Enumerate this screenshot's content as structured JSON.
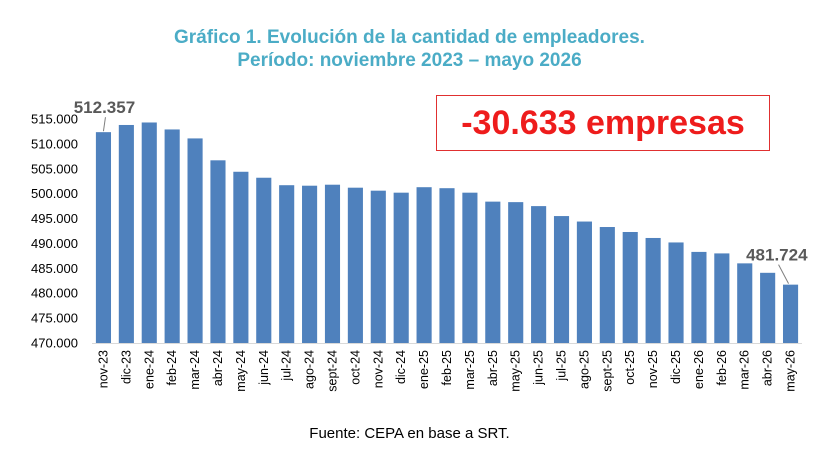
{
  "chart_data": {
    "type": "bar",
    "title": "Gráfico 1. Evolución de la cantidad de empleadores.",
    "subtitle": "Período: noviembre 2023 – mayo 2026",
    "categories": [
      "nov-23",
      "dic-23",
      "ene-24",
      "feb-24",
      "mar-24",
      "abr-24",
      "may-24",
      "jun-24",
      "jul-24",
      "ago-24",
      "sept-24",
      "oct-24",
      "nov-24",
      "dic-24",
      "ene-25",
      "feb-25",
      "mar-25",
      "abr-25",
      "may-25",
      "jun-25",
      "jul-25",
      "ago-25",
      "sept-25",
      "oct-25",
      "nov-25",
      "dic-25",
      "ene-26",
      "feb-26",
      "mar-26",
      "abr-26",
      "may-26"
    ],
    "values": [
      512357,
      513800,
      514300,
      512900,
      511100,
      506700,
      504400,
      503200,
      501700,
      501600,
      501800,
      501200,
      500600,
      500200,
      501300,
      501100,
      500200,
      498400,
      498300,
      497500,
      495500,
      494400,
      493300,
      492300,
      491100,
      490200,
      488300,
      488000,
      486000,
      484100,
      481724
    ],
    "ylim": [
      470000,
      515000
    ],
    "yticks": [
      "470.000",
      "475.000",
      "480.000",
      "485.000",
      "490.000",
      "495.000",
      "500.000",
      "505.000",
      "510.000",
      "515.000"
    ],
    "data_labels": [
      {
        "category": "nov-23",
        "text": "512.357"
      },
      {
        "category": "may-26",
        "text": "481.724"
      }
    ],
    "bar_color": "#4f81bd",
    "grid": false
  },
  "callout": "-30.633 empresas",
  "source": "Fuente: CEPA en base a SRT.",
  "colors": {
    "title": "#4bacc6",
    "callout": "#ee1c1c"
  }
}
